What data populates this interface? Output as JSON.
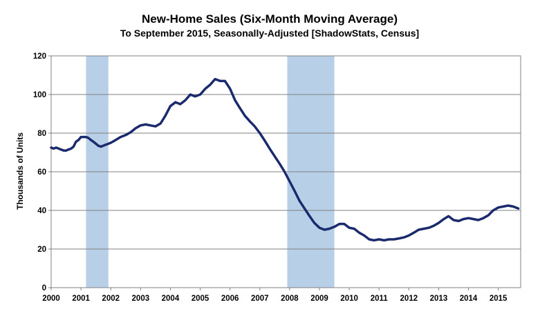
{
  "chart_data": {
    "type": "line",
    "title": "New-Home Sales (Six-Month Moving Average)",
    "subtitle": "To September 2015, Seasonally-Adjusted [ShadowStats, Census]",
    "xlabel": "",
    "ylabel": "Thousands of Units",
    "xlim": [
      2000.0,
      2015.75
    ],
    "ylim": [
      0,
      120
    ],
    "yticks": [
      0,
      20,
      40,
      60,
      80,
      100,
      120
    ],
    "xtick_labels": [
      "2000",
      "2001",
      "2002",
      "2003",
      "2004",
      "2005",
      "2006",
      "2007",
      "2008",
      "2009",
      "2010",
      "2011",
      "2012",
      "2013",
      "2014",
      "2015"
    ],
    "grid": "horizontal",
    "legend": "none",
    "line_color": "#1a2a6c",
    "recession_color": "#b8cfe8",
    "recessions": [
      {
        "start": 2001.17,
        "end": 2001.92
      },
      {
        "start": 2007.92,
        "end": 2009.5
      }
    ],
    "series": [
      {
        "x": [
          2000.0,
          2000.08,
          2000.17,
          2000.25,
          2000.33,
          2000.42,
          2000.5,
          2000.58,
          2000.67,
          2000.75,
          2000.83,
          2000.92,
          2001.0,
          2001.08,
          2001.17,
          2001.25,
          2001.33,
          2001.42,
          2001.5,
          2001.58,
          2001.67,
          2001.75,
          2001.83,
          2001.92,
          2002.0,
          2002.17,
          2002.33,
          2002.5,
          2002.67,
          2002.83,
          2003.0,
          2003.17,
          2003.33,
          2003.5,
          2003.67,
          2003.83,
          2004.0,
          2004.17,
          2004.33,
          2004.5,
          2004.67,
          2004.83,
          2005.0,
          2005.17,
          2005.33,
          2005.5,
          2005.67,
          2005.83,
          2006.0,
          2006.17,
          2006.33,
          2006.5,
          2006.67,
          2006.83,
          2007.0,
          2007.17,
          2007.33,
          2007.5,
          2007.67,
          2007.83,
          2008.0,
          2008.17,
          2008.33,
          2008.5,
          2008.67,
          2008.83,
          2009.0,
          2009.17,
          2009.33,
          2009.5,
          2009.67,
          2009.83,
          2010.0,
          2010.17,
          2010.33,
          2010.5,
          2010.67,
          2010.83,
          2011.0,
          2011.17,
          2011.33,
          2011.5,
          2011.67,
          2011.83,
          2012.0,
          2012.17,
          2012.33,
          2012.5,
          2012.67,
          2012.83,
          2013.0,
          2013.17,
          2013.33,
          2013.5,
          2013.67,
          2013.83,
          2014.0,
          2014.17,
          2014.33,
          2014.5,
          2014.67,
          2014.83,
          2015.0,
          2015.17,
          2015.33,
          2015.5,
          2015.67
        ],
        "values": [
          72.5,
          72.0,
          72.5,
          72.0,
          71.5,
          71.0,
          71.0,
          71.5,
          72.0,
          73.0,
          75.5,
          76.5,
          78.0,
          78.0,
          78.0,
          77.5,
          76.5,
          75.5,
          74.5,
          73.5,
          73.0,
          73.5,
          74.0,
          74.5,
          75.0,
          76.5,
          78.0,
          79.0,
          80.5,
          82.5,
          84.0,
          84.5,
          84.0,
          83.5,
          85.0,
          89.0,
          94.0,
          96.0,
          95.0,
          97.0,
          100.0,
          99.0,
          100.0,
          103.0,
          105.0,
          108.0,
          107.0,
          107.0,
          103.0,
          97.0,
          93.0,
          89.0,
          86.0,
          83.5,
          80.0,
          76.0,
          72.0,
          68.0,
          64.0,
          60.0,
          55.0,
          50.0,
          45.0,
          41.0,
          37.0,
          33.5,
          31.0,
          30.0,
          30.5,
          31.5,
          33.0,
          33.0,
          31.0,
          30.5,
          28.5,
          27.0,
          25.0,
          24.5,
          25.0,
          24.5,
          25.0,
          25.0,
          25.5,
          26.0,
          27.0,
          28.5,
          30.0,
          30.5,
          31.0,
          32.0,
          33.5,
          35.5,
          37.0,
          35.0,
          34.5,
          35.5,
          36.0,
          35.5,
          35.0,
          36.0,
          37.5,
          40.0,
          41.5,
          42.0,
          42.5,
          42.0,
          41.0
        ]
      }
    ]
  }
}
